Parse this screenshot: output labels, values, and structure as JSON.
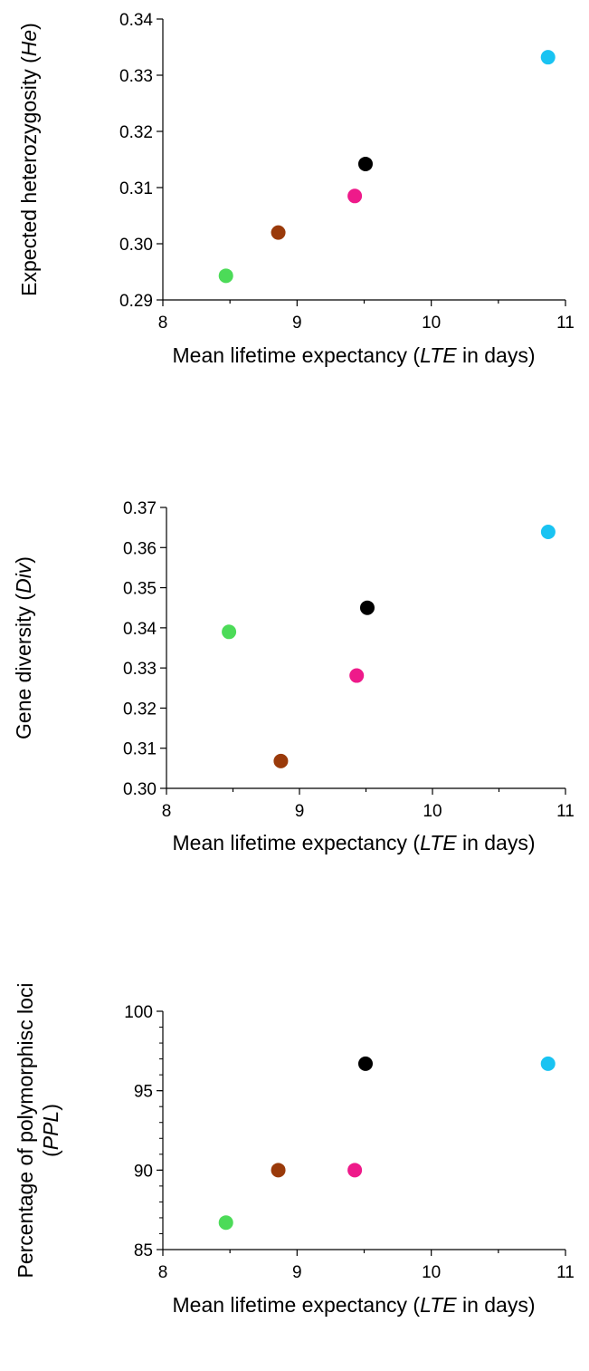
{
  "chart_data": [
    {
      "type": "scatter",
      "xlabel": "Mean lifetime expectancy (LTE in days)",
      "xlabel_parts": [
        "Mean lifetime expectancy (",
        "LTE",
        " in days)"
      ],
      "ylabel": "Expected heterozygosity (He)",
      "ylabel_parts": [
        "Expected heterozygosity (",
        "He",
        ")"
      ],
      "xlim": [
        8,
        11
      ],
      "ylim": [
        0.29,
        0.34
      ],
      "xticks": [
        "8",
        "9",
        "10",
        "11"
      ],
      "yticks": [
        "0.29",
        "0.30",
        "0.31",
        "0.32",
        "0.33",
        "0.34"
      ],
      "points": [
        {
          "x": 8.47,
          "y": 0.2943,
          "color": "#4cdb58"
        },
        {
          "x": 8.86,
          "y": 0.302,
          "color": "#9a3a0a"
        },
        {
          "x": 9.43,
          "y": 0.3085,
          "color": "#ee1a8a"
        },
        {
          "x": 9.51,
          "y": 0.3142,
          "color": "#000000"
        },
        {
          "x": 10.87,
          "y": 0.3332,
          "color": "#19c3f2"
        }
      ]
    },
    {
      "type": "scatter",
      "xlabel": "Mean lifetime expectancy (LTE in days)",
      "xlabel_parts": [
        "Mean lifetime expectancy (",
        "LTE",
        " in days)"
      ],
      "ylabel": "Gene diversity (Div)",
      "ylabel_parts": [
        "Gene diversity (",
        "Div",
        ")"
      ],
      "xlim": [
        8,
        11
      ],
      "ylim": [
        0.3,
        0.37
      ],
      "xticks": [
        "8",
        "9",
        "10",
        "11"
      ],
      "yticks": [
        "0.30",
        "0.31",
        "0.32",
        "0.33",
        "0.34",
        "0.35",
        "0.36",
        "0.37"
      ],
      "points": [
        {
          "x": 8.47,
          "y": 0.339,
          "color": "#4cdb58"
        },
        {
          "x": 8.86,
          "y": 0.3068,
          "color": "#9a3a0a"
        },
        {
          "x": 9.43,
          "y": 0.3281,
          "color": "#ee1a8a"
        },
        {
          "x": 9.51,
          "y": 0.345,
          "color": "#000000"
        },
        {
          "x": 10.87,
          "y": 0.3639,
          "color": "#19c3f2"
        }
      ]
    },
    {
      "type": "scatter",
      "xlabel": "Mean lifetime expectancy (LTE in days)",
      "xlabel_parts": [
        "Mean lifetime expectancy (",
        "LTE",
        " in days)"
      ],
      "ylabel": "Percentage of polymorphisc loci (PPL)",
      "ylabel_line1": "Percentage of polymorphisc loci",
      "ylabel_line2_parts": [
        "(",
        "PPL",
        ")"
      ],
      "xlim": [
        8,
        11
      ],
      "ylim": [
        85,
        100
      ],
      "xticks": [
        "8",
        "9",
        "10",
        "11"
      ],
      "yticks": [
        "85",
        "90",
        "95",
        "100"
      ],
      "points": [
        {
          "x": 8.47,
          "y": 86.7,
          "color": "#4cdb58"
        },
        {
          "x": 8.86,
          "y": 90.0,
          "color": "#9a3a0a"
        },
        {
          "x": 9.43,
          "y": 90.0,
          "color": "#ee1a8a"
        },
        {
          "x": 9.51,
          "y": 96.7,
          "color": "#000000"
        },
        {
          "x": 10.87,
          "y": 96.7,
          "color": "#19c3f2"
        }
      ]
    }
  ]
}
